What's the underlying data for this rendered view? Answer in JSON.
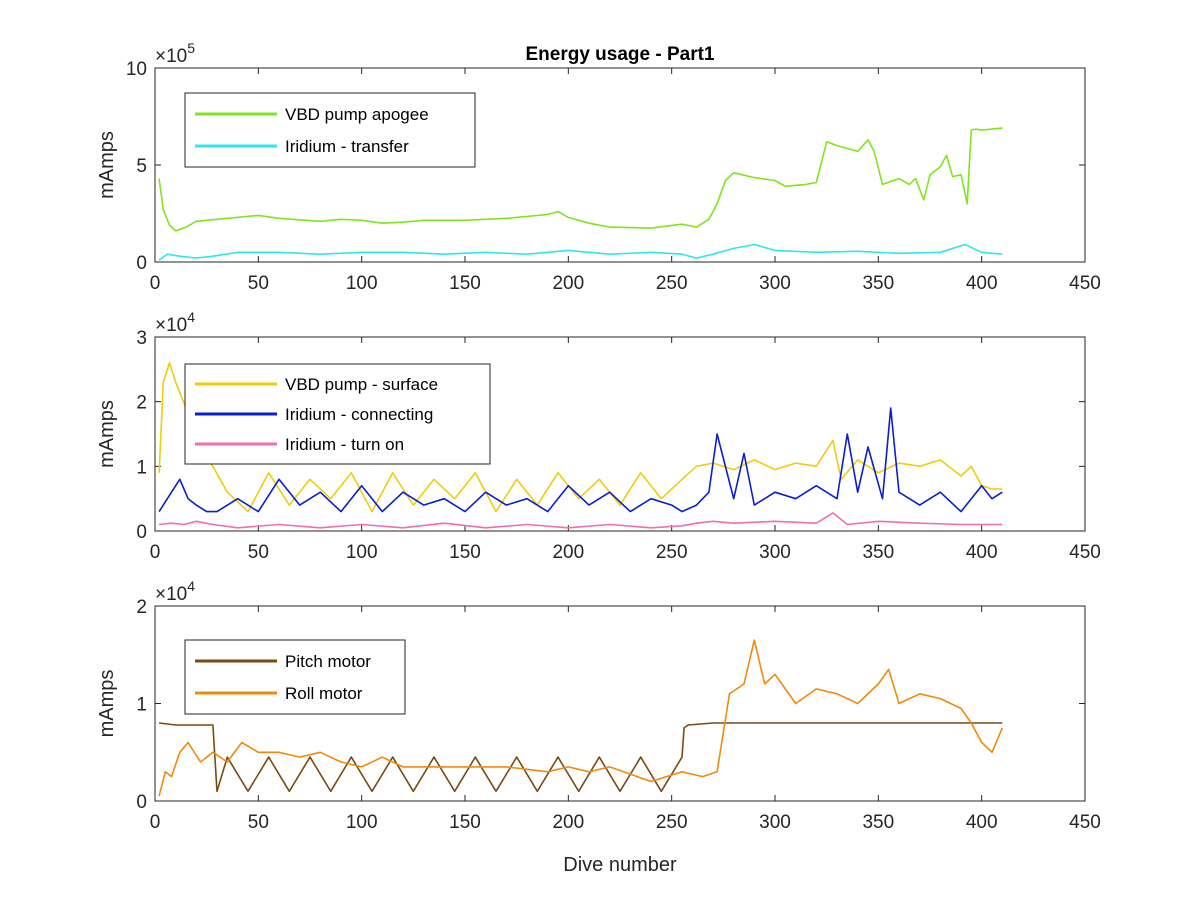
{
  "chart_data": [
    {
      "type": "line",
      "title": "Energy usage - Part1",
      "xlabel": "",
      "ylabel": "mAmps",
      "xlim": [
        0,
        450
      ],
      "ylim": [
        0,
        10
      ],
      "y_multiplier": {
        "base": "10",
        "exponent": "5"
      },
      "xticks": [
        "0",
        "50",
        "100",
        "150",
        "200",
        "250",
        "300",
        "350",
        "400",
        "450"
      ],
      "yticks": [
        "0",
        "5",
        "10"
      ],
      "legend_position": "top-left",
      "series": [
        {
          "name": "VBD pump apogee",
          "color": "#7FE51F",
          "x": [
            2,
            4,
            7,
            10,
            15,
            20,
            30,
            50,
            60,
            80,
            90,
            100,
            110,
            120,
            130,
            150,
            170,
            190,
            195,
            200,
            210,
            220,
            240,
            255,
            262,
            268,
            272,
            276,
            280,
            290,
            300,
            305,
            315,
            320,
            325,
            330,
            340,
            345,
            348,
            352,
            360,
            365,
            368,
            372,
            375,
            380,
            383,
            386,
            390,
            393,
            394,
            395,
            397,
            400,
            405,
            410
          ],
          "y": [
            4.3,
            2.7,
            1.9,
            1.6,
            1.8,
            2.1,
            2.2,
            2.4,
            2.25,
            2.1,
            2.2,
            2.15,
            2.0,
            2.05,
            2.15,
            2.15,
            2.25,
            2.45,
            2.6,
            2.3,
            2.0,
            1.8,
            1.75,
            1.95,
            1.8,
            2.2,
            3.0,
            4.2,
            4.6,
            4.35,
            4.2,
            3.9,
            4.0,
            4.1,
            6.2,
            6.0,
            5.7,
            6.3,
            5.7,
            4.0,
            4.3,
            4.0,
            4.3,
            3.2,
            4.5,
            4.9,
            5.5,
            4.4,
            4.5,
            3.0,
            5.0,
            6.8,
            6.85,
            6.8,
            6.85,
            6.9
          ]
        },
        {
          "name": "Iridium - transfer",
          "color": "#2EE6F0",
          "x": [
            2,
            6,
            12,
            20,
            28,
            40,
            60,
            80,
            100,
            120,
            140,
            160,
            180,
            200,
            220,
            240,
            255,
            262,
            270,
            280,
            290,
            300,
            320,
            340,
            360,
            380,
            392,
            400,
            410
          ],
          "y": [
            0.1,
            0.4,
            0.3,
            0.2,
            0.3,
            0.5,
            0.5,
            0.4,
            0.5,
            0.5,
            0.4,
            0.5,
            0.4,
            0.6,
            0.4,
            0.5,
            0.4,
            0.2,
            0.4,
            0.7,
            0.9,
            0.6,
            0.5,
            0.55,
            0.45,
            0.5,
            0.9,
            0.5,
            0.4
          ]
        }
      ]
    },
    {
      "type": "line",
      "title": "",
      "xlabel": "",
      "ylabel": "mAmps",
      "xlim": [
        0,
        450
      ],
      "ylim": [
        0,
        3
      ],
      "y_multiplier": {
        "base": "10",
        "exponent": "4"
      },
      "xticks": [
        "0",
        "50",
        "100",
        "150",
        "200",
        "250",
        "300",
        "350",
        "400",
        "450"
      ],
      "yticks": [
        "0",
        "1",
        "2",
        "3"
      ],
      "legend_position": "top-left",
      "series": [
        {
          "name": "VBD pump - surface",
          "color": "#F2CC0C",
          "x": [
            2,
            4,
            7,
            10,
            15,
            22,
            28,
            35,
            45,
            55,
            65,
            75,
            85,
            95,
            105,
            115,
            125,
            135,
            145,
            155,
            165,
            175,
            185,
            195,
            205,
            215,
            225,
            235,
            245,
            255,
            262,
            270,
            280,
            290,
            300,
            310,
            320,
            328,
            332,
            340,
            350,
            360,
            370,
            380,
            390,
            395,
            400,
            405,
            410
          ],
          "y": [
            0.9,
            2.3,
            2.6,
            2.3,
            1.9,
            1.2,
            1.0,
            0.6,
            0.3,
            0.9,
            0.4,
            0.8,
            0.5,
            0.9,
            0.3,
            0.9,
            0.4,
            0.8,
            0.5,
            0.9,
            0.3,
            0.8,
            0.4,
            0.9,
            0.5,
            0.8,
            0.4,
            0.9,
            0.5,
            0.8,
            1.0,
            1.05,
            0.95,
            1.1,
            0.95,
            1.05,
            1.0,
            1.4,
            0.8,
            1.1,
            0.9,
            1.05,
            1.0,
            1.1,
            0.85,
            1.0,
            0.7,
            0.65,
            0.65
          ]
        },
        {
          "name": "Iridium - connecting",
          "color": "#0A1FCC",
          "x": [
            2,
            8,
            12,
            16,
            20,
            25,
            30,
            40,
            50,
            60,
            70,
            80,
            90,
            100,
            110,
            120,
            130,
            140,
            150,
            160,
            170,
            180,
            190,
            200,
            210,
            220,
            230,
            240,
            250,
            255,
            262,
            268,
            272,
            280,
            285,
            290,
            300,
            310,
            320,
            330,
            335,
            340,
            345,
            352,
            356,
            360,
            370,
            380,
            390,
            395,
            400,
            405,
            410
          ],
          "y": [
            0.3,
            0.6,
            0.8,
            0.5,
            0.4,
            0.3,
            0.3,
            0.5,
            0.3,
            0.8,
            0.4,
            0.6,
            0.3,
            0.7,
            0.3,
            0.6,
            0.4,
            0.5,
            0.3,
            0.6,
            0.4,
            0.5,
            0.3,
            0.7,
            0.4,
            0.6,
            0.3,
            0.5,
            0.4,
            0.3,
            0.4,
            0.6,
            1.5,
            0.5,
            1.2,
            0.4,
            0.6,
            0.5,
            0.7,
            0.5,
            1.5,
            0.6,
            1.3,
            0.5,
            1.9,
            0.6,
            0.4,
            0.6,
            0.3,
            0.5,
            0.7,
            0.5,
            0.6
          ]
        },
        {
          "name": "Iridium - turn on",
          "color": "#F06EB4",
          "x": [
            2,
            8,
            14,
            20,
            28,
            40,
            60,
            80,
            100,
            120,
            140,
            160,
            180,
            200,
            220,
            240,
            255,
            262,
            270,
            280,
            300,
            320,
            328,
            335,
            350,
            370,
            390,
            400,
            410
          ],
          "y": [
            0.1,
            0.12,
            0.1,
            0.15,
            0.1,
            0.05,
            0.1,
            0.05,
            0.1,
            0.05,
            0.12,
            0.05,
            0.1,
            0.05,
            0.1,
            0.05,
            0.08,
            0.12,
            0.15,
            0.12,
            0.15,
            0.12,
            0.28,
            0.1,
            0.15,
            0.12,
            0.1,
            0.1,
            0.1
          ]
        }
      ]
    },
    {
      "type": "line",
      "title": "",
      "xlabel": "Dive number",
      "ylabel": "mAmps",
      "xlim": [
        0,
        450
      ],
      "ylim": [
        0,
        2
      ],
      "y_multiplier": {
        "base": "10",
        "exponent": "4"
      },
      "xticks": [
        "0",
        "50",
        "100",
        "150",
        "200",
        "250",
        "300",
        "350",
        "400",
        "450"
      ],
      "yticks": [
        "0",
        "1",
        "2"
      ],
      "legend_position": "top-left",
      "series": [
        {
          "name": "Pitch motor",
          "color": "#7A4A14",
          "x": [
            2,
            10,
            20,
            28,
            30,
            35,
            45,
            55,
            65,
            75,
            85,
            95,
            105,
            115,
            125,
            135,
            145,
            155,
            165,
            175,
            185,
            195,
            205,
            215,
            225,
            235,
            245,
            255,
            256,
            258,
            270,
            280,
            300,
            320,
            340,
            360,
            380,
            400,
            410
          ],
          "y": [
            0.8,
            0.78,
            0.78,
            0.78,
            0.1,
            0.45,
            0.1,
            0.45,
            0.1,
            0.45,
            0.1,
            0.45,
            0.1,
            0.45,
            0.1,
            0.45,
            0.1,
            0.45,
            0.1,
            0.45,
            0.1,
            0.45,
            0.1,
            0.45,
            0.1,
            0.45,
            0.1,
            0.45,
            0.75,
            0.78,
            0.8,
            0.8,
            0.8,
            0.8,
            0.8,
            0.8,
            0.8,
            0.8,
            0.8
          ]
        },
        {
          "name": "Roll motor",
          "color": "#F08A0C",
          "x": [
            2,
            5,
            8,
            12,
            16,
            22,
            28,
            35,
            42,
            50,
            60,
            70,
            80,
            90,
            100,
            110,
            120,
            130,
            150,
            170,
            190,
            200,
            210,
            220,
            240,
            255,
            265,
            272,
            278,
            285,
            290,
            295,
            300,
            310,
            320,
            330,
            340,
            350,
            355,
            360,
            370,
            380,
            390,
            395,
            400,
            405,
            410
          ],
          "y": [
            0.05,
            0.3,
            0.25,
            0.5,
            0.6,
            0.4,
            0.5,
            0.4,
            0.6,
            0.5,
            0.5,
            0.45,
            0.5,
            0.4,
            0.35,
            0.45,
            0.35,
            0.35,
            0.35,
            0.35,
            0.3,
            0.35,
            0.3,
            0.35,
            0.2,
            0.3,
            0.25,
            0.3,
            1.1,
            1.2,
            1.65,
            1.2,
            1.3,
            1.0,
            1.15,
            1.1,
            1.0,
            1.2,
            1.35,
            1.0,
            1.1,
            1.05,
            0.95,
            0.8,
            0.6,
            0.5,
            0.75
          ]
        }
      ]
    }
  ]
}
